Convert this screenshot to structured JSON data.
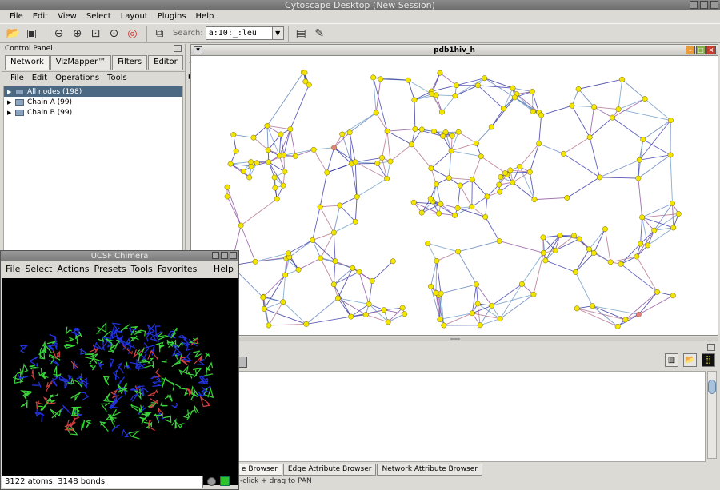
{
  "window": {
    "title": "Cytoscape Desktop (New Session)"
  },
  "menubar": [
    "File",
    "Edit",
    "View",
    "Select",
    "Layout",
    "Plugins",
    "Help"
  ],
  "toolbar": {
    "search_label": "Search:",
    "search_value": "a:10:_:leu"
  },
  "control_panel": {
    "title": "Control Panel",
    "tabs": [
      "Network",
      "VizMapper™",
      "Filters",
      "Editor"
    ],
    "menu": [
      "File",
      "Edit",
      "Operations",
      "Tools"
    ],
    "tree": [
      {
        "label": "All nodes (198)",
        "selected": true
      },
      {
        "label": "Chain A (99)",
        "selected": false
      },
      {
        "label": "Chain B (99)",
        "selected": false
      }
    ]
  },
  "network_view": {
    "title": "pdb1hiv_h",
    "node_color": "#f2e600",
    "highlight_color": "#e88080",
    "edge_colors": [
      "#3a3ab0",
      "#6a9ac8",
      "#8a4a9a",
      "#5a7ab8",
      "#2a2a9a",
      "#b06a8a"
    ]
  },
  "data_panel": {
    "tabs": [
      "Node Attribute Browser",
      "Edge Attribute Browser",
      "Network Attribute Browser"
    ],
    "visible_tab_text": "e Browser",
    "status": "-click + drag  to  PAN"
  },
  "chimera": {
    "title": "UCSF Chimera",
    "menu": [
      "File",
      "Select",
      "Actions",
      "Presets",
      "Tools",
      "Favorites"
    ],
    "help": "Help",
    "status": "3122 atoms, 3148 bonds",
    "colors": {
      "backbone": "#3ad33a",
      "chainA": "#2233dd",
      "highlight": "#d04040"
    }
  }
}
